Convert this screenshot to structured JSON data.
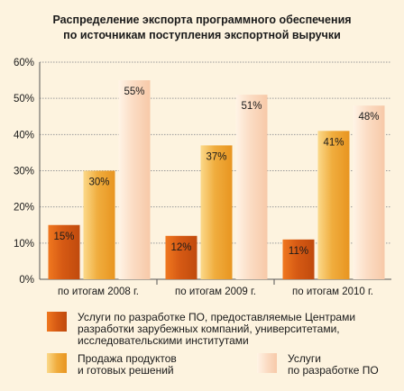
{
  "title_line1": "Распределение экспорта программного обеспечения",
  "title_line2": "по источникам поступления экспортной выручки",
  "chart_data": {
    "type": "bar",
    "categories": [
      "по итогам 2008 г.",
      "по итогам 2009 г.",
      "по итогам 2010 г."
    ],
    "series": [
      {
        "name": "Услуги по разработке ПО, предоставляемые Центрами разработки зарубежных компаний, университетами, исследовательскими институтами",
        "values": [
          15,
          12,
          11
        ],
        "labels": [
          "15%",
          "12%",
          "11%"
        ],
        "color": "#d65a14"
      },
      {
        "name": "Продажа продуктов и готовых решений",
        "values": [
          30,
          37,
          41
        ],
        "labels": [
          "30%",
          "37%",
          "41%"
        ],
        "color": "#f0ad3e"
      },
      {
        "name": "Услуги по разработке ПО",
        "values": [
          55,
          51,
          48
        ],
        "labels": [
          "55%",
          "51%",
          "48%"
        ],
        "color": "#fbdcc4"
      }
    ],
    "ylim": [
      0,
      60
    ],
    "yticks": [
      "0%",
      "10%",
      "20%",
      "30%",
      "40%",
      "50%",
      "60%"
    ],
    "grid": true,
    "legend_position": "bottom"
  },
  "legend": {
    "item1_lines": [
      "Услуги по разработке ПО, предоставляемые Центрами",
      "разработки зарубежных компаний, университетами,",
      "исследовательскими институтами"
    ],
    "item2_lines": [
      "Продажа продуктов",
      "и готовых решений"
    ],
    "item3_lines": [
      "Услуги",
      "по разработке ПО"
    ]
  }
}
